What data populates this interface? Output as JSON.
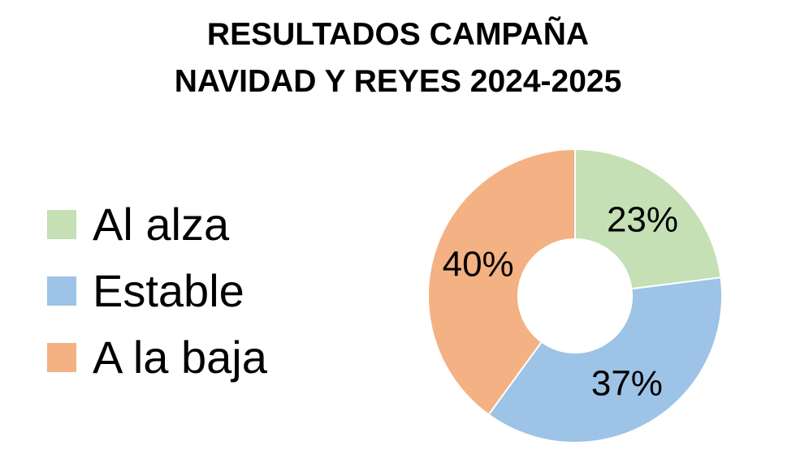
{
  "chart_data": {
    "type": "pie",
    "subtype": "doughnut",
    "title": [
      "RESULTADOS CAMPAÑA",
      "NAVIDAD Y REYES 2024-2025"
    ],
    "categories": [
      "Al alza",
      "Estable",
      "A la baja"
    ],
    "values": [
      23,
      37,
      40
    ],
    "data_labels": [
      "23%",
      "37%",
      "40%"
    ],
    "colors": [
      "#c5e0b4",
      "#9dc3e6",
      "#f4b183"
    ],
    "legend_position": "left",
    "grid": false
  }
}
